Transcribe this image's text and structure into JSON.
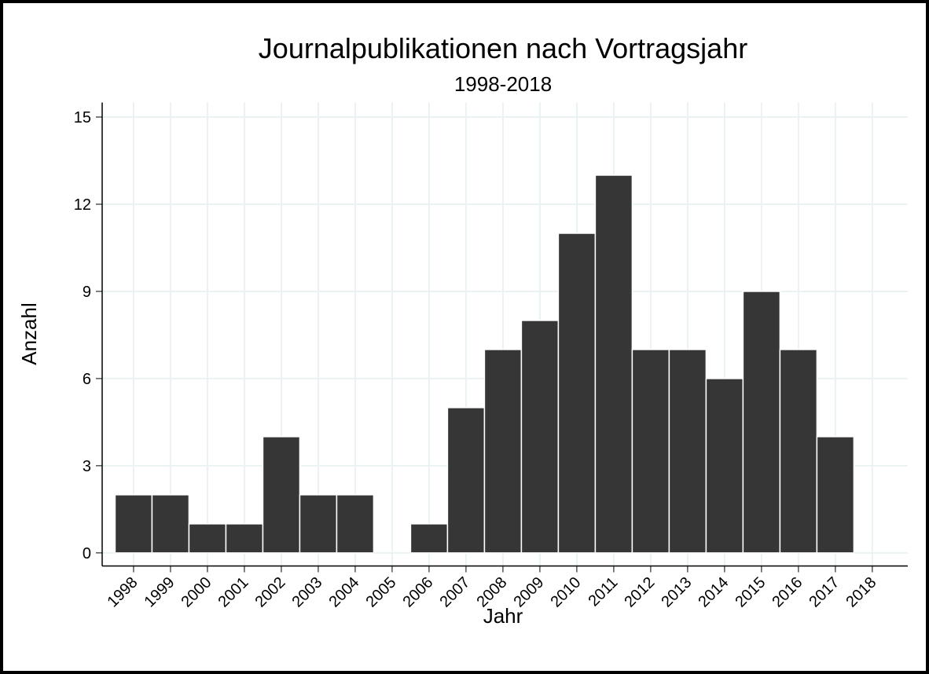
{
  "chart_data": {
    "type": "bar",
    "title": "Journalpublikationen nach Vortragsjahr",
    "subtitle": "1998-2018",
    "x_label": "Jahr",
    "y_label": "Anzahl",
    "x": [
      1998,
      1999,
      2000,
      2001,
      2002,
      2003,
      2004,
      2005,
      2006,
      2007,
      2008,
      2009,
      2010,
      2011,
      2012,
      2013,
      2014,
      2015,
      2016,
      2017,
      2018
    ],
    "values": [
      2,
      2,
      1,
      1,
      4,
      2,
      2,
      0,
      1,
      5,
      7,
      8,
      11,
      13,
      7,
      7,
      6,
      9,
      7,
      4,
      0
    ],
    "color": "#363636",
    "xlim": [
      1997.15,
      2018.96
    ],
    "xticks": [
      1998,
      1999,
      2000,
      2001,
      2002,
      2003,
      2004,
      2005,
      2006,
      2007,
      2008,
      2009,
      2010,
      2011,
      2012,
      2013,
      2014,
      2015,
      2016,
      2017,
      2018
    ],
    "ylim": [
      -0.45,
      15.5
    ],
    "yticks": [
      0,
      3,
      6,
      9,
      12,
      15
    ],
    "grid": true
  }
}
